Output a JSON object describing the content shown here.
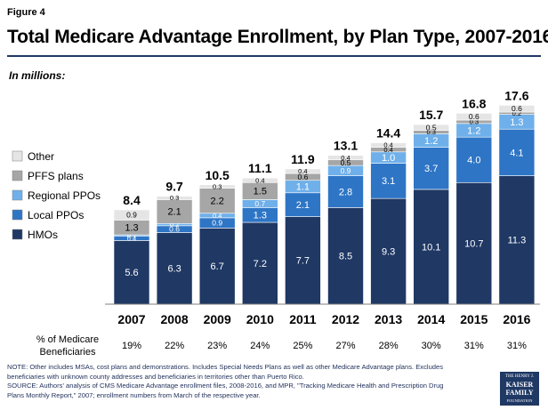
{
  "figure_label": "Figure 4",
  "note": "NOTE:  Other includes MSAs, cost plans and demonstrations.  Includes Special Needs Plans as well as other Medicare Advantage plans. Excludes beneficiaries with unknown county addresses and beneficiaries in territories other than Puerto Rico.",
  "source": "SOURCE:  Authors' analysis of CMS Medicare Advantage enrollment files, 2008-2016, and MPR, \"Tracking Medicare Health and Prescription Drug Plans Monthly Report,\" 2007; enrollment numbers from March of the respective year.",
  "logo": {
    "line1": "THE HENRY J.",
    "line2": "KAISER",
    "line3": "FAMILY",
    "line4": "FOUNDATION"
  },
  "colors": {
    "hmo": "#1f3864",
    "local_ppo": "#2e75c6",
    "regional_ppo": "#6fb0ea",
    "pffs": "#a6a6a6",
    "other": "#e5e5e5",
    "title": "#1f3864"
  },
  "chart_data": {
    "type": "bar",
    "stacked": true,
    "title": "Total Medicare Advantage Enrollment, by Plan Type, 2007-2016",
    "subtitle": "In millions:",
    "categories": [
      "2007",
      "2008",
      "2009",
      "2010",
      "2011",
      "2012",
      "2013",
      "2014",
      "2015",
      "2016"
    ],
    "series": [
      {
        "name": "HMOs",
        "key": "hmo",
        "values": [
          5.6,
          6.3,
          6.7,
          7.2,
          7.7,
          8.5,
          9.3,
          10.1,
          10.7,
          11.3
        ]
      },
      {
        "name": "Local PPOs",
        "key": "local_ppo",
        "values": [
          0.4,
          0.6,
          0.9,
          1.3,
          2.1,
          2.8,
          3.1,
          3.7,
          4.0,
          4.1
        ]
      },
      {
        "name": "Regional PPOs",
        "key": "regional_ppo",
        "values": [
          0.1,
          0.2,
          0.4,
          0.7,
          1.1,
          0.9,
          1.0,
          1.2,
          1.2,
          1.3
        ]
      },
      {
        "name": "PFFS plans",
        "key": "pffs",
        "values": [
          1.3,
          2.1,
          2.2,
          1.5,
          0.6,
          0.5,
          0.4,
          0.3,
          0.3,
          0.2
        ]
      },
      {
        "name": "Other",
        "key": "other",
        "values": [
          0.9,
          0.3,
          0.3,
          0.4,
          0.4,
          0.4,
          0.4,
          0.5,
          0.6,
          0.6
        ]
      }
    ],
    "totals": [
      "8.4",
      "9.7",
      "10.5",
      "11.1",
      "11.9",
      "13.1",
      "14.4",
      "15.7",
      "16.8",
      "17.6"
    ],
    "legend": [
      "Other",
      "PFFS plans",
      "Regional PPOs",
      "Local PPOs",
      "HMOs"
    ],
    "legend_position": "left",
    "pct_label": "% of Medicare Beneficiaries",
    "pct_values": [
      "19%",
      "22%",
      "23%",
      "24%",
      "25%",
      "27%",
      "28%",
      "30%",
      "31%",
      "31%"
    ],
    "ylim": [
      0,
      18
    ],
    "grid": false
  }
}
